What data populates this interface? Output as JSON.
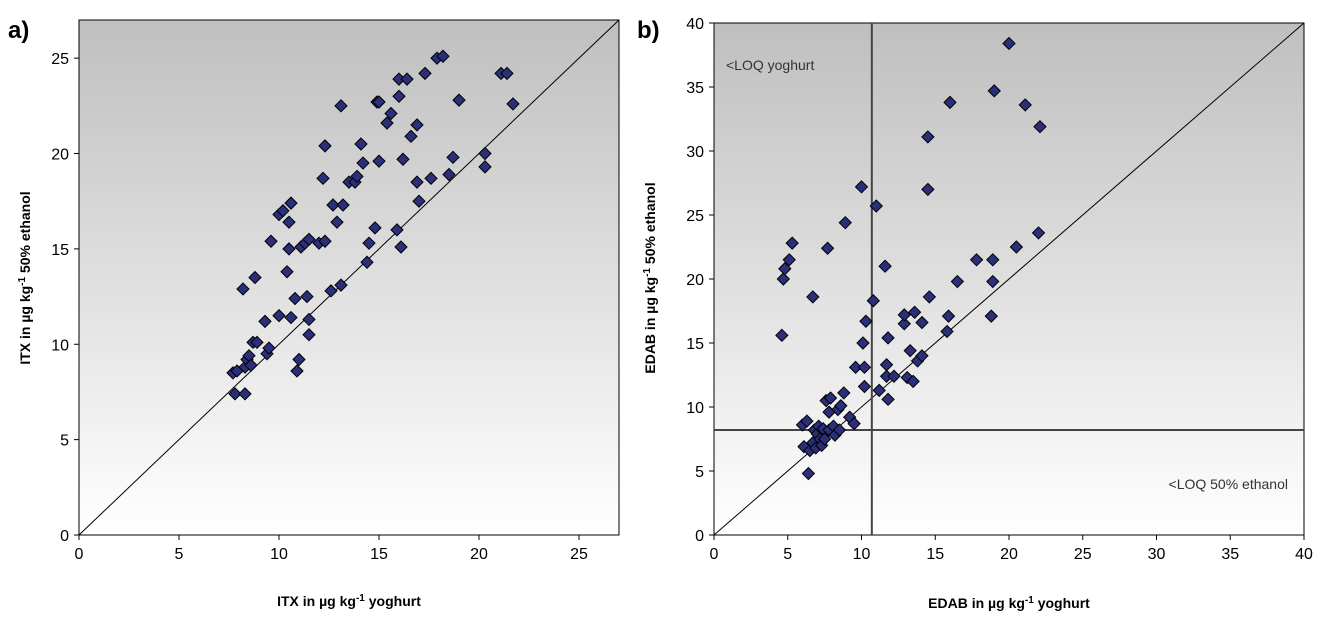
{
  "colors": {
    "marker_fill": "#2b2f7a",
    "marker_stroke": "#000000",
    "plot_bg_top": "#bfbfbf",
    "plot_bg_bottom": "#ffffff",
    "line": "#000000",
    "loq_line": "#444444"
  },
  "chart_data": [
    {
      "type": "scatter",
      "panel_label": "a)",
      "title": "",
      "xlabel": {
        "main": "ITX in µg kg",
        "sup": "-1",
        "tail": " yoghurt"
      },
      "ylabel": {
        "main": "ITX in µg kg",
        "sup": "-1",
        "tail": " 50% ethanol"
      },
      "xlim": [
        0,
        27
      ],
      "ylim": [
        0,
        27
      ],
      "xticks": [
        0,
        5,
        10,
        15,
        20,
        25
      ],
      "yticks": [
        0,
        5,
        10,
        15,
        20,
        25
      ],
      "grid": false,
      "background": "gradient",
      "reference_line": "y = x",
      "points": [
        [
          7.7,
          8.5
        ],
        [
          7.8,
          7.4
        ],
        [
          7.9,
          8.6
        ],
        [
          8.2,
          12.9
        ],
        [
          8.3,
          7.4
        ],
        [
          8.3,
          8.8
        ],
        [
          8.4,
          9.2
        ],
        [
          8.5,
          9.4
        ],
        [
          8.6,
          8.9
        ],
        [
          8.7,
          10.1
        ],
        [
          8.8,
          13.5
        ],
        [
          8.9,
          10.1
        ],
        [
          9.3,
          11.2
        ],
        [
          9.4,
          9.5
        ],
        [
          9.5,
          9.8
        ],
        [
          9.6,
          15.4
        ],
        [
          10.0,
          11.5
        ],
        [
          10.0,
          16.8
        ],
        [
          10.2,
          17.0
        ],
        [
          10.4,
          13.8
        ],
        [
          10.5,
          16.4
        ],
        [
          10.5,
          15.0
        ],
        [
          10.6,
          17.4
        ],
        [
          10.6,
          11.4
        ],
        [
          10.8,
          12.4
        ],
        [
          10.9,
          8.6
        ],
        [
          11.0,
          9.2
        ],
        [
          11.1,
          15.1
        ],
        [
          11.3,
          15.3
        ],
        [
          11.5,
          15.5
        ],
        [
          11.4,
          12.5
        ],
        [
          11.5,
          11.3
        ],
        [
          11.5,
          10.5
        ],
        [
          12.0,
          15.3
        ],
        [
          12.2,
          18.7
        ],
        [
          12.3,
          15.4
        ],
        [
          12.3,
          20.4
        ],
        [
          12.6,
          12.8
        ],
        [
          12.7,
          17.3
        ],
        [
          12.9,
          16.4
        ],
        [
          13.1,
          22.5
        ],
        [
          13.2,
          17.3
        ],
        [
          13.1,
          13.1
        ],
        [
          13.5,
          18.5
        ],
        [
          13.8,
          18.5
        ],
        [
          13.9,
          18.8
        ],
        [
          14.1,
          20.5
        ],
        [
          14.2,
          19.5
        ],
        [
          14.4,
          14.3
        ],
        [
          14.5,
          15.3
        ],
        [
          14.8,
          16.1
        ],
        [
          14.9,
          22.7
        ],
        [
          15.0,
          22.7
        ],
        [
          15.0,
          19.6
        ],
        [
          15.4,
          21.6
        ],
        [
          15.6,
          22.1
        ],
        [
          15.9,
          16.0
        ],
        [
          16.0,
          23.0
        ],
        [
          16.0,
          23.9
        ],
        [
          16.1,
          15.1
        ],
        [
          16.2,
          19.7
        ],
        [
          16.4,
          23.9
        ],
        [
          16.6,
          20.9
        ],
        [
          16.9,
          21.5
        ],
        [
          16.9,
          18.5
        ],
        [
          17.0,
          17.5
        ],
        [
          17.3,
          24.2
        ],
        [
          17.6,
          18.7
        ],
        [
          17.9,
          25.0
        ],
        [
          18.2,
          25.1
        ],
        [
          18.5,
          18.9
        ],
        [
          18.7,
          19.8
        ],
        [
          19.0,
          22.8
        ],
        [
          20.3,
          20.0
        ],
        [
          20.3,
          19.3
        ],
        [
          21.1,
          24.2
        ],
        [
          21.4,
          24.2
        ],
        [
          21.7,
          22.6
        ]
      ]
    },
    {
      "type": "scatter",
      "panel_label": "b)",
      "title": "",
      "xlabel": {
        "main": "EDAB in µg kg",
        "sup": "-1",
        "tail": " yoghurt"
      },
      "ylabel": {
        "main": "EDAB in µg kg",
        "sup": "-1",
        "tail": " 50% ethanol"
      },
      "xlim": [
        0,
        40
      ],
      "ylim": [
        0,
        40
      ],
      "xticks": [
        0,
        5,
        10,
        15,
        20,
        25,
        30,
        35,
        40
      ],
      "yticks": [
        0,
        5,
        10,
        15,
        20,
        25,
        30,
        35,
        40
      ],
      "grid": false,
      "background": "gradient",
      "reference_line": "y = x",
      "loq_x": 10.7,
      "loq_y": 8.2,
      "annotations": [
        "<LOQ yoghurt",
        "<LOQ 50% ethanol"
      ],
      "points": [
        [
          4.6,
          15.6
        ],
        [
          4.7,
          20.0
        ],
        [
          4.8,
          20.8
        ],
        [
          5.1,
          21.5
        ],
        [
          5.3,
          22.8
        ],
        [
          6.0,
          8.6
        ],
        [
          6.1,
          6.9
        ],
        [
          6.3,
          8.9
        ],
        [
          6.4,
          4.8
        ],
        [
          6.5,
          6.6
        ],
        [
          6.7,
          18.6
        ],
        [
          6.7,
          7.2
        ],
        [
          6.8,
          8.2
        ],
        [
          6.9,
          6.8
        ],
        [
          7.0,
          7.9
        ],
        [
          7.1,
          8.5
        ],
        [
          7.2,
          7.5
        ],
        [
          7.3,
          7.0
        ],
        [
          7.4,
          8.3
        ],
        [
          7.5,
          7.5
        ],
        [
          7.6,
          10.5
        ],
        [
          7.7,
          22.4
        ],
        [
          7.8,
          9.6
        ],
        [
          7.8,
          8.2
        ],
        [
          7.9,
          10.7
        ],
        [
          8.1,
          8.5
        ],
        [
          8.2,
          7.8
        ],
        [
          8.4,
          9.8
        ],
        [
          8.5,
          8.2
        ],
        [
          8.6,
          10.1
        ],
        [
          8.8,
          11.1
        ],
        [
          8.9,
          24.4
        ],
        [
          9.2,
          9.2
        ],
        [
          9.5,
          8.7
        ],
        [
          9.6,
          13.1
        ],
        [
          10.0,
          27.2
        ],
        [
          10.1,
          15.0
        ],
        [
          10.2,
          11.6
        ],
        [
          10.2,
          13.1
        ],
        [
          10.3,
          16.7
        ],
        [
          10.8,
          18.3
        ],
        [
          11.0,
          25.7
        ],
        [
          11.2,
          11.3
        ],
        [
          11.6,
          21.0
        ],
        [
          11.7,
          12.4
        ],
        [
          11.7,
          13.3
        ],
        [
          11.8,
          10.6
        ],
        [
          11.8,
          15.4
        ],
        [
          12.2,
          12.4
        ],
        [
          12.9,
          16.5
        ],
        [
          12.9,
          17.2
        ],
        [
          13.1,
          12.3
        ],
        [
          13.3,
          14.4
        ],
        [
          13.5,
          12.0
        ],
        [
          13.6,
          17.4
        ],
        [
          13.8,
          13.6
        ],
        [
          14.1,
          14.0
        ],
        [
          14.1,
          16.6
        ],
        [
          14.5,
          27.0
        ],
        [
          14.5,
          31.1
        ],
        [
          14.6,
          18.6
        ],
        [
          15.8,
          15.9
        ],
        [
          15.9,
          17.1
        ],
        [
          16.0,
          33.8
        ],
        [
          16.5,
          19.8
        ],
        [
          17.8,
          21.5
        ],
        [
          18.8,
          17.1
        ],
        [
          18.9,
          19.8
        ],
        [
          18.9,
          21.5
        ],
        [
          19.0,
          34.7
        ],
        [
          20.0,
          38.4
        ],
        [
          20.5,
          22.5
        ],
        [
          21.1,
          33.6
        ],
        [
          22.0,
          23.6
        ],
        [
          22.1,
          31.9
        ]
      ]
    }
  ]
}
